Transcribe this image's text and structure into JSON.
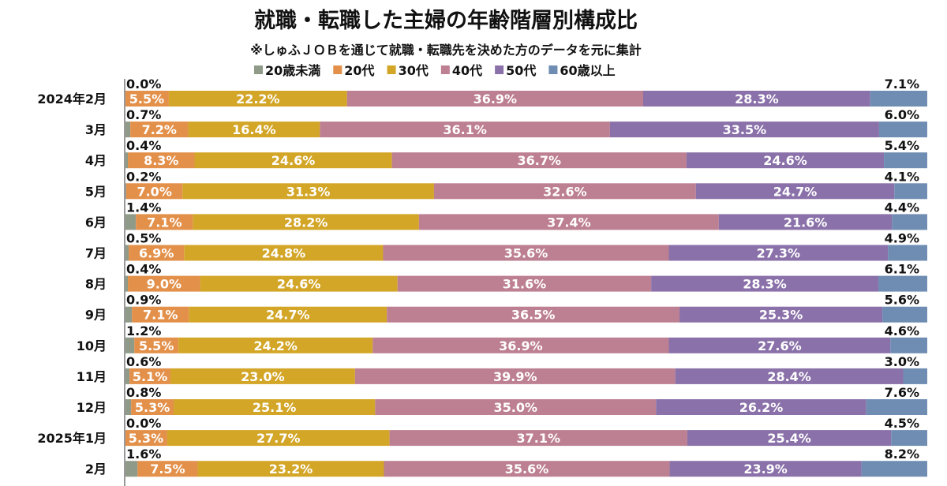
{
  "chart_data": {
    "type": "bar",
    "orientation": "horizontal",
    "stacked": "100%",
    "title": "就職・転職した主婦の年齢階層別構成比",
    "subtitle": "※しゅふＪＯＢを通じて就職・転職先を決めた方のデータを元に集計",
    "legend_placement": "top",
    "grid": false,
    "xlim": [
      0,
      100
    ],
    "categories": [
      "2024年2月",
      "3月",
      "4月",
      "5月",
      "6月",
      "7月",
      "8月",
      "9月",
      "10月",
      "11月",
      "12月",
      "2025年1月",
      "2月"
    ],
    "series": [
      {
        "name": "20歳未満",
        "color": "#8f9b88",
        "values": [
          0.0,
          0.7,
          0.4,
          0.2,
          1.4,
          0.5,
          0.4,
          0.9,
          1.2,
          0.6,
          0.8,
          0.0,
          1.6
        ]
      },
      {
        "name": "20代",
        "color": "#e3904a",
        "values": [
          5.5,
          7.2,
          8.3,
          7.0,
          7.1,
          6.9,
          9.0,
          7.1,
          5.5,
          5.1,
          5.3,
          5.3,
          7.5
        ]
      },
      {
        "name": "30代",
        "color": "#d3a628",
        "values": [
          22.2,
          16.4,
          24.6,
          31.3,
          28.2,
          24.8,
          24.6,
          24.7,
          24.2,
          23.0,
          25.1,
          27.7,
          23.2
        ]
      },
      {
        "name": "40代",
        "color": "#bd7f92",
        "values": [
          36.9,
          36.1,
          36.7,
          32.6,
          37.4,
          35.6,
          31.6,
          36.5,
          36.9,
          39.9,
          35.0,
          37.1,
          35.6
        ]
      },
      {
        "name": "50代",
        "color": "#8a71a9",
        "values": [
          28.3,
          33.5,
          24.6,
          24.7,
          21.6,
          27.3,
          28.3,
          25.3,
          27.6,
          28.4,
          26.2,
          25.4,
          23.9
        ]
      },
      {
        "name": "60歳以上",
        "color": "#6f8db2",
        "values": [
          7.1,
          6.0,
          5.4,
          4.1,
          4.4,
          4.9,
          6.1,
          5.6,
          4.6,
          3.0,
          7.6,
          4.5,
          8.2
        ]
      }
    ]
  }
}
